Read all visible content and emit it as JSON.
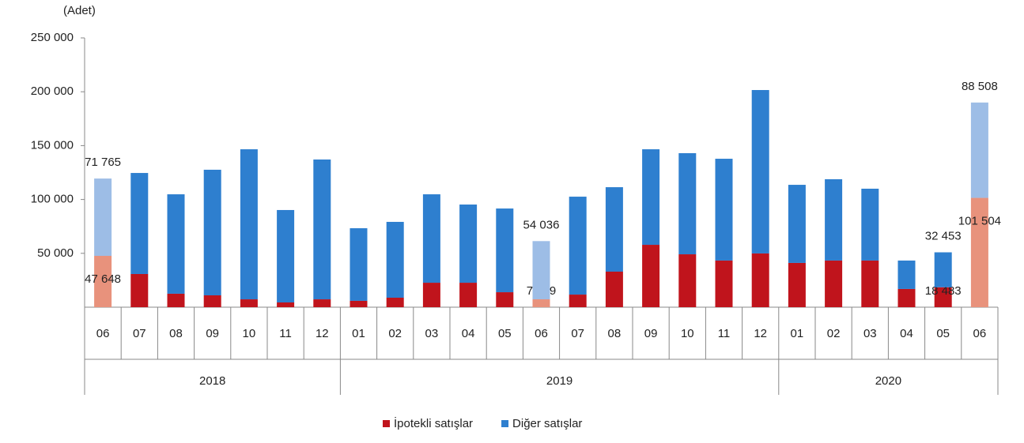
{
  "chart_data": {
    "type": "stacked-bar",
    "y_unit_label": "(Adet)",
    "categories": [
      "06",
      "07",
      "08",
      "09",
      "10",
      "11",
      "12",
      "01",
      "02",
      "03",
      "04",
      "05",
      "06",
      "07",
      "08",
      "09",
      "10",
      "11",
      "12",
      "01",
      "02",
      "03",
      "04",
      "05",
      "06"
    ],
    "category_groups": [
      {
        "label": "2018",
        "size": 7
      },
      {
        "label": "2019",
        "size": 12
      },
      {
        "label": "2020",
        "size": 6
      }
    ],
    "ylim": [
      0,
      250000
    ],
    "yticks": [
      {
        "value": 50000,
        "label": "50 000"
      },
      {
        "value": 100000,
        "label": "100 000"
      },
      {
        "value": 150000,
        "label": "150 000"
      },
      {
        "value": 200000,
        "label": "200 000"
      },
      {
        "value": 250000,
        "label": "250 000"
      }
    ],
    "grid": false,
    "legend": "bottom",
    "series": [
      {
        "name": "İpotekli satışlar",
        "color": "#c0141c",
        "colors": [
          "#e8927c",
          "#c0141c",
          "#c0141c",
          "#c0141c",
          "#c0141c",
          "#c0141c",
          "#c0141c",
          "#c0141c",
          "#c0141c",
          "#c0141c",
          "#c0141c",
          "#c0141c",
          "#e8927c",
          "#c0141c",
          "#c0141c",
          "#c0141c",
          "#c0141c",
          "#c0141c",
          "#c0141c",
          "#c0141c",
          "#c0141c",
          "#c0141c",
          "#c0141c",
          "#c0141c",
          "#e8927c"
        ],
        "values": [
          47648,
          30800,
          12500,
          11000,
          7300,
          4400,
          7300,
          5900,
          8800,
          22700,
          22700,
          13900,
          7319,
          11700,
          33000,
          57900,
          49100,
          43300,
          49900,
          41100,
          43300,
          43300,
          16900,
          18483,
          101504
        ],
        "value_labels": [
          "47 648",
          null,
          null,
          null,
          null,
          null,
          null,
          null,
          null,
          null,
          null,
          null,
          "7 319",
          null,
          null,
          null,
          null,
          null,
          null,
          null,
          null,
          null,
          null,
          "18 483",
          "101 504"
        ]
      },
      {
        "name": "Diğer satışlar",
        "color": "#2e7fcf",
        "colors": [
          "#9dbde6",
          "#2e7fcf",
          "#2e7fcf",
          "#2e7fcf",
          "#2e7fcf",
          "#2e7fcf",
          "#2e7fcf",
          "#2e7fcf",
          "#2e7fcf",
          "#2e7fcf",
          "#2e7fcf",
          "#2e7fcf",
          "#9dbde6",
          "#2e7fcf",
          "#2e7fcf",
          "#2e7fcf",
          "#2e7fcf",
          "#2e7fcf",
          "#2e7fcf",
          "#2e7fcf",
          "#2e7fcf",
          "#2e7fcf",
          "#2e7fcf",
          "#2e7fcf",
          "#9dbde6"
        ],
        "values": [
          71765,
          93800,
          92300,
          116600,
          139300,
          85800,
          129800,
          67400,
          70400,
          82100,
          72600,
          77700,
          54036,
          90900,
          78400,
          88700,
          93900,
          94500,
          151700,
          72500,
          75500,
          66700,
          26400,
          32453,
          88508
        ],
        "value_labels": [
          "71 765",
          null,
          null,
          null,
          null,
          null,
          null,
          null,
          null,
          null,
          null,
          null,
          "54 036",
          null,
          null,
          null,
          null,
          null,
          null,
          null,
          null,
          null,
          null,
          "32 453",
          "88 508"
        ]
      }
    ]
  }
}
